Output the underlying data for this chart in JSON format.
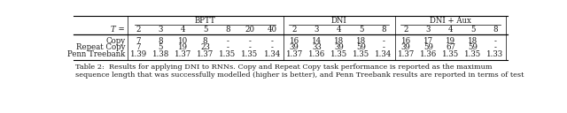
{
  "title_bold": "Table 2:",
  "title_rest": "  Results for applying DNI to RNNs. Copy and Repeat Copy task performance is reported as the maximum",
  "caption_line2": "sequence length that was successfully modelled (higher is better), and Penn Treebank results are reported in terms of test",
  "header_groups": [
    {
      "label": "BPTT",
      "cols": [
        "2",
        "3",
        "4",
        "5",
        "8",
        "20",
        "40"
      ]
    },
    {
      "label": "DNI",
      "cols": [
        "2",
        "3",
        "4",
        "5",
        "8"
      ]
    },
    {
      "label": "DNI + Aux",
      "cols": [
        "2",
        "3",
        "4",
        "5",
        "8"
      ]
    }
  ],
  "T_label": "T =",
  "rows": [
    {
      "name": "Copy",
      "bptt": [
        "7",
        "8",
        "10",
        "8",
        "-",
        "-",
        "-"
      ],
      "dni": [
        "16",
        "14",
        "18",
        "18",
        "-"
      ],
      "dni_aux": [
        "16",
        "17",
        "19",
        "18",
        "-"
      ]
    },
    {
      "name": "Repeat Copy",
      "bptt": [
        "7",
        "5",
        "19",
        "23",
        "-",
        "-",
        "-"
      ],
      "dni": [
        "39",
        "33",
        "39",
        "59",
        "-"
      ],
      "dni_aux": [
        "39",
        "59",
        "67",
        "59",
        "-"
      ]
    },
    {
      "name": "Penn Treebank",
      "bptt": [
        "1.39",
        "1.38",
        "1.37",
        "1.37",
        "1.35",
        "1.35",
        "1.34"
      ],
      "dni": [
        "1.37",
        "1.36",
        "1.35",
        "1.35",
        "1.34"
      ],
      "dni_aux": [
        "1.37",
        "1.36",
        "1.35",
        "1.35",
        "1.33"
      ]
    }
  ],
  "background_color": "#ffffff",
  "text_color": "#1a1a1a",
  "fig_width": 6.4,
  "fig_height": 1.28,
  "dpi": 100
}
